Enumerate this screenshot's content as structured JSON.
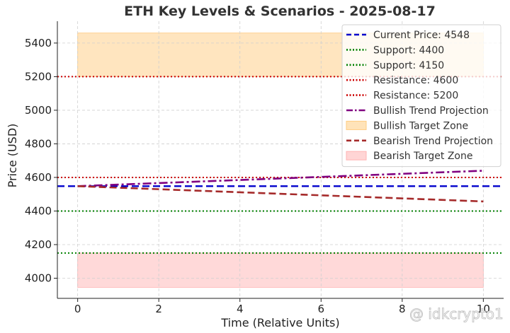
{
  "chart_data": {
    "type": "line",
    "title": "ETH Key Levels & Scenarios - 2025-08-17",
    "xlabel": "Time (Relative Units)",
    "ylabel": "Price (USD)",
    "xlim": [
      -0.5,
      10.5
    ],
    "ylim": [
      3880,
      5530
    ],
    "xticks": [
      0,
      2,
      4,
      6,
      8,
      10
    ],
    "yticks": [
      4000,
      4200,
      4400,
      4600,
      4800,
      5000,
      5200,
      5400
    ],
    "grid": true,
    "legend_position": "top-right",
    "horizontal_lines": [
      {
        "name": "Current Price: 4548",
        "value": 4548,
        "color": "#0000cc",
        "style": "dashed"
      },
      {
        "name": "Support: 4400",
        "value": 4400,
        "color": "#008000",
        "style": "dotted"
      },
      {
        "name": "Support: 4150",
        "value": 4150,
        "color": "#008000",
        "style": "dotted"
      },
      {
        "name": "Resistance: 4600",
        "value": 4600,
        "color": "#cc0000",
        "style": "dotted"
      },
      {
        "name": "Resistance: 5200",
        "value": 5200,
        "color": "#cc0000",
        "style": "dotted"
      }
    ],
    "series": [
      {
        "name": "Bullish Trend Projection",
        "x": [
          0,
          10
        ],
        "values": [
          4548,
          4640
        ],
        "color": "#800080",
        "style": "dashdot"
      },
      {
        "name": "Bearish Trend Projection",
        "x": [
          0,
          10
        ],
        "values": [
          4548,
          4457
        ],
        "color": "#a52a2a",
        "style": "dashed"
      }
    ],
    "zones": [
      {
        "name": "Bullish Target Zone",
        "x": [
          0,
          10
        ],
        "y": [
          5200,
          5460
        ],
        "color": "#ffcc80"
      },
      {
        "name": "Bearish Target Zone",
        "x": [
          0,
          10
        ],
        "y": [
          3945,
          4150
        ],
        "color": "#ffb3b3"
      }
    ],
    "legend_order": [
      "Current Price: 4548",
      "Support: 4400",
      "Support: 4150",
      "Resistance: 4600",
      "Resistance: 5200",
      "Bullish Trend Projection",
      "Bullish Target Zone",
      "Bearish Trend Projection",
      "Bearish Target Zone"
    ]
  },
  "watermark": "@ idkcrypto1"
}
